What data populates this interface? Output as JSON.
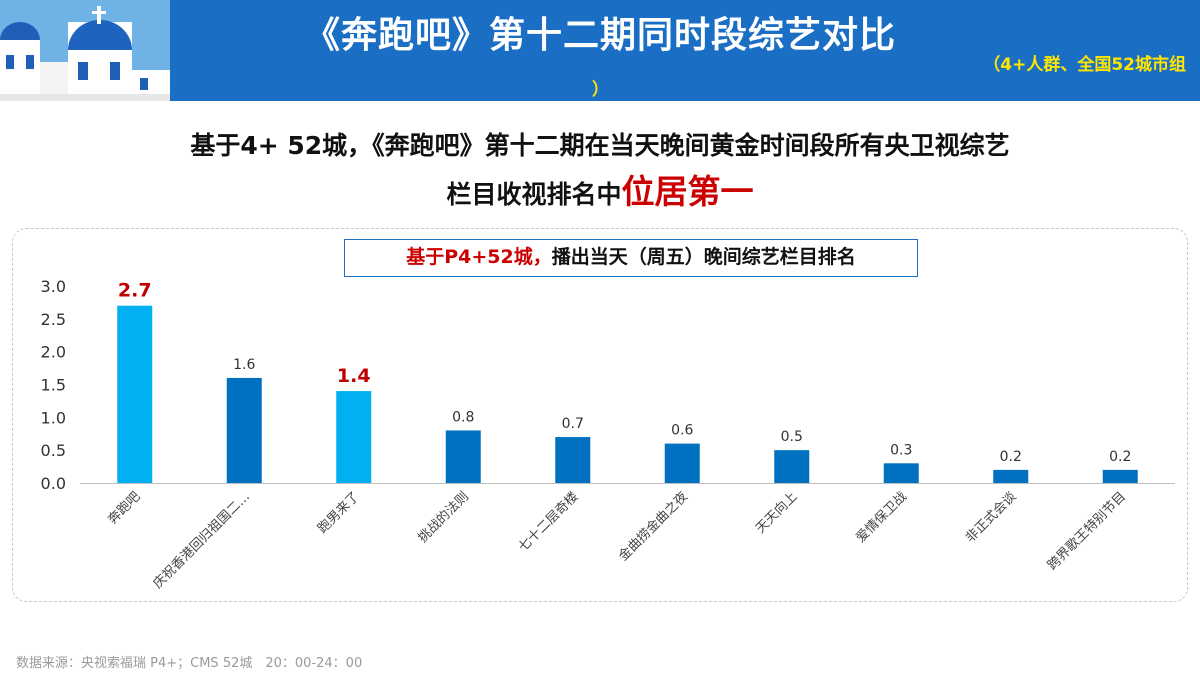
{
  "banner": {
    "title": "《奔跑吧》第十二期同时段综艺对比",
    "subtitle_line1": "（4+人群、全国52城市组",
    "subtitle_line2": "）"
  },
  "headline": {
    "line1": "基于4+ 52城，《奔跑吧》第十二期在当天晚间黄金时间段所有央卫视综艺",
    "line2_prefix": "栏目收视排名中",
    "line2_emphasis": "位居第一"
  },
  "footer": {
    "source": "数据来源：央视索福瑞 P4+；CMS 52城　20：00-24：00"
  },
  "chart_data": {
    "type": "bar",
    "title_highlight": "基于P4+52城，",
    "title_rest": "播出当天（周五）晚间综艺栏目排名",
    "categories": [
      "奔跑吧",
      "庆祝香港回归祖国二…",
      "跑男来了",
      "挑战的法则",
      "七十二层奇楼",
      "金曲捞金曲之夜",
      "天天向上",
      "爱情保卫战",
      "非正式会谈",
      "跨界歌王特别节目"
    ],
    "values": [
      2.7,
      1.6,
      1.4,
      0.8,
      0.7,
      0.6,
      0.5,
      0.3,
      0.2,
      0.2
    ],
    "value_labels": [
      "2.7",
      "1.6",
      "1.4",
      "0.8",
      "0.7",
      "0.6",
      "0.5",
      "0.3",
      "0.2",
      "0.2"
    ],
    "highlighted": [
      true,
      false,
      true,
      false,
      false,
      false,
      false,
      false,
      false,
      false
    ],
    "y_ticks": [
      "0.0",
      "0.5",
      "1.0",
      "1.5",
      "2.0",
      "2.5",
      "3.0"
    ],
    "ylim": [
      0,
      3
    ],
    "grid": false,
    "colors": {
      "highlight_bar": "#00b0f0",
      "normal_bar": "#0070c0",
      "highlight_label": "#c00000",
      "normal_label": "#333333"
    }
  }
}
